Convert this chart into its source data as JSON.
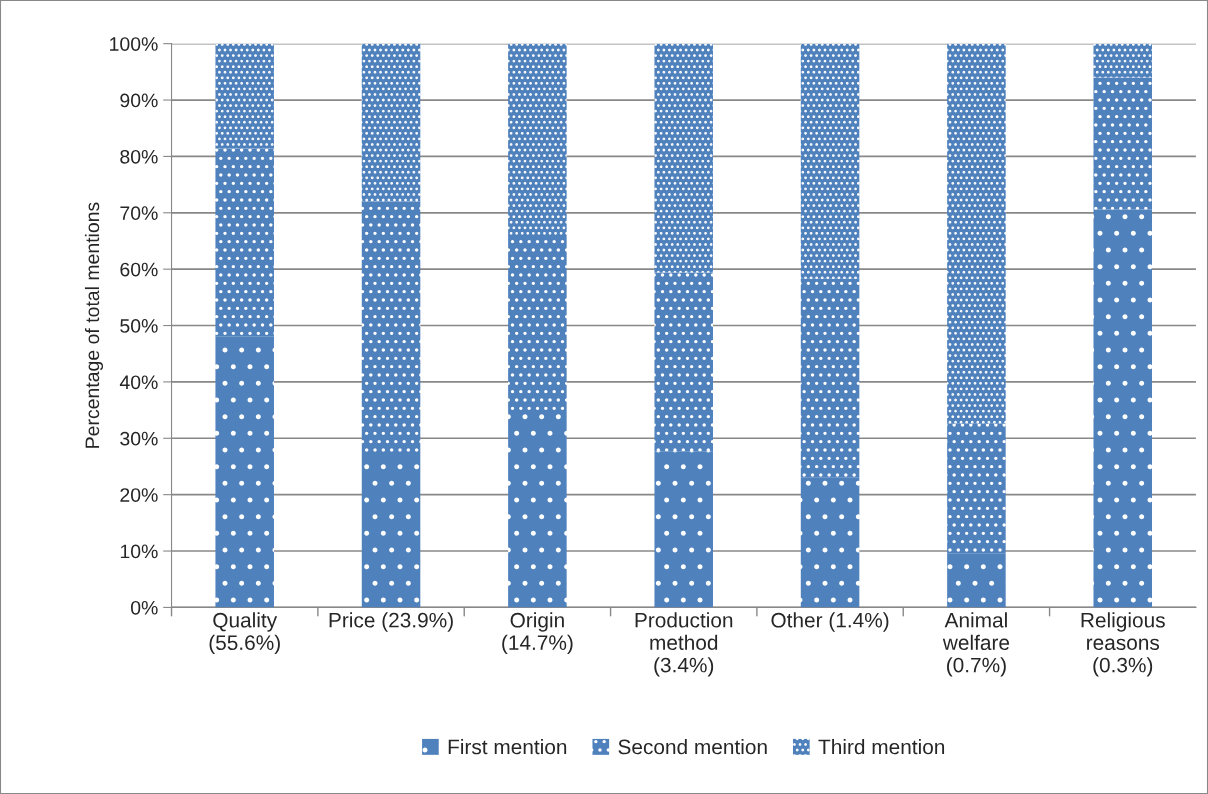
{
  "chart_data": {
    "type": "bar",
    "stacked": true,
    "ylabel": "Percentage of total mentions",
    "categories": [
      "Quality\n(55.6%)",
      "Price (23.9%)",
      "Origin\n(14.7%)",
      "Production\nmethod\n(3.4%)",
      "Other (1.4%)",
      "Animal\nwelfare\n(0.7%)",
      "Religious\nreasons\n(0.3%)"
    ],
    "series": [
      {
        "name": "First mention",
        "color": "#4f81bd",
        "values": [
          48.1,
          27.2,
          34.3,
          27.7,
          23.0,
          9.6,
          70.6
        ]
      },
      {
        "name": "Second mention",
        "color": "#4f81bd",
        "values": [
          33.3,
          44.8,
          31.6,
          31.7,
          35.3,
          23.0,
          23.4
        ]
      },
      {
        "name": "Third mention",
        "color": "#4f81bd",
        "values": [
          18.6,
          28.0,
          34.1,
          40.6,
          41.7,
          67.4,
          6.0
        ]
      }
    ],
    "ylim": [
      0,
      100
    ],
    "yticks": [
      {
        "value": 0,
        "label": "0%"
      },
      {
        "value": 10,
        "label": "10%"
      },
      {
        "value": 20,
        "label": "20%"
      },
      {
        "value": 30,
        "label": "30%"
      },
      {
        "value": 40,
        "label": "40%"
      },
      {
        "value": 50,
        "label": "50%"
      },
      {
        "value": 60,
        "label": "60%"
      },
      {
        "value": 70,
        "label": "70%"
      },
      {
        "value": 80,
        "label": "80%"
      },
      {
        "value": 90,
        "label": "90%"
      },
      {
        "value": 100,
        "label": "100%"
      }
    ],
    "grid": "y",
    "legend": "bottom"
  }
}
